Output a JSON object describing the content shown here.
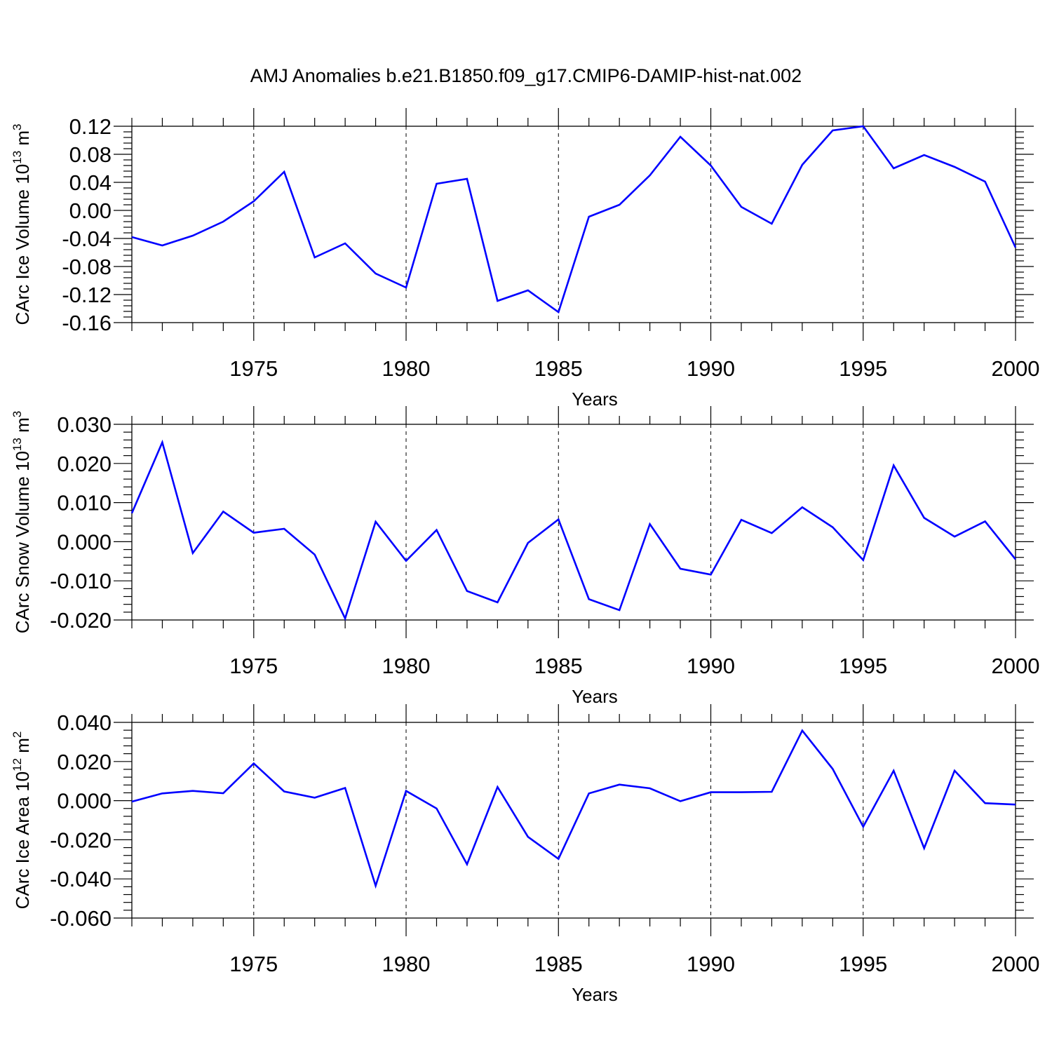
{
  "title": "AMJ Anomalies b.e21.B1850.f09_g17.CMIP6-DAMIP-hist-nat.002",
  "chart_data": [
    {
      "type": "line",
      "title": "AMJ Anomalies b.e21.B1850.f09_g17.CMIP6-DAMIP-hist-nat.002",
      "xlabel": "Years",
      "ylabel": {
        "text": "CArc Ice Volume 10",
        "exp": "13",
        "unit": " m",
        "unit_exp": "3"
      },
      "xlim": [
        1971,
        2000
      ],
      "ylim": [
        -0.16,
        0.12
      ],
      "xticks": [
        "1975",
        "1980",
        "1985",
        "1990",
        "1995",
        "2000"
      ],
      "yticks": [
        "0.12",
        "0.08",
        "0.04",
        "0.00",
        "-0.04",
        "-0.08",
        "-0.12",
        "-0.16"
      ],
      "grid": "dashed vertical at major x ticks",
      "line_color": "#0000ff",
      "series": [
        {
          "name": "CArc Ice Volume",
          "x": [
            1971,
            1972,
            1973,
            1974,
            1975,
            1976,
            1977,
            1978,
            1979,
            1980,
            1981,
            1982,
            1983,
            1984,
            1985,
            1986,
            1987,
            1988,
            1989,
            1990,
            1991,
            1992,
            1993,
            1994,
            1995,
            1996,
            1997,
            1998,
            1999,
            2000
          ],
          "values": [
            -0.038,
            -0.05,
            -0.036,
            -0.016,
            0.013,
            0.055,
            -0.067,
            -0.047,
            -0.09,
            -0.11,
            0.038,
            0.045,
            -0.129,
            -0.114,
            -0.145,
            -0.009,
            0.008,
            0.05,
            0.105,
            0.064,
            0.005,
            -0.019,
            0.065,
            0.114,
            0.12,
            0.06,
            0.079,
            0.062,
            0.041,
            -0.053
          ]
        }
      ]
    },
    {
      "type": "line",
      "xlabel": "Years",
      "ylabel": {
        "text": "CArc Snow Volume 10",
        "exp": "13",
        "unit": " m",
        "unit_exp": "3"
      },
      "xlim": [
        1971,
        2000
      ],
      "ylim": [
        -0.02,
        0.03
      ],
      "xticks": [
        "1975",
        "1980",
        "1985",
        "1990",
        "1995",
        "2000"
      ],
      "yticks": [
        "0.030",
        "0.020",
        "0.010",
        "0.000",
        "-0.010",
        "-0.020"
      ],
      "grid": "dashed vertical at major x ticks",
      "line_color": "#0000ff",
      "series": [
        {
          "name": "CArc Snow Volume",
          "x": [
            1971,
            1972,
            1973,
            1974,
            1975,
            1976,
            1977,
            1978,
            1979,
            1980,
            1981,
            1982,
            1983,
            1984,
            1985,
            1986,
            1987,
            1988,
            1989,
            1990,
            1991,
            1992,
            1993,
            1994,
            1995,
            1996,
            1997,
            1998,
            1999,
            2000
          ],
          "values": [
            0.0073,
            0.0254,
            -0.0029,
            0.0077,
            0.0023,
            0.0033,
            -0.0033,
            -0.0196,
            0.0051,
            -0.0049,
            0.003,
            -0.0126,
            -0.0155,
            -0.0003,
            0.0057,
            -0.0147,
            -0.0175,
            0.0045,
            -0.0069,
            -0.0084,
            0.0056,
            0.0022,
            0.0088,
            0.0037,
            -0.0047,
            0.0195,
            0.0061,
            0.0013,
            0.0052,
            -0.0045
          ]
        }
      ]
    },
    {
      "type": "line",
      "xlabel": "Years",
      "ylabel": {
        "text": "CArc Ice Area 10",
        "exp": "12",
        "unit": " m",
        "unit_exp": "2"
      },
      "xlim": [
        1971,
        2000
      ],
      "ylim": [
        -0.06,
        0.04
      ],
      "xticks": [
        "1975",
        "1980",
        "1985",
        "1990",
        "1995",
        "2000"
      ],
      "yticks": [
        "0.040",
        "0.020",
        "0.000",
        "-0.020",
        "-0.040",
        "-0.060"
      ],
      "grid": "dashed vertical at major x ticks",
      "line_color": "#0000ff",
      "series": [
        {
          "name": "CArc Ice Area",
          "x": [
            1971,
            1972,
            1973,
            1974,
            1975,
            1976,
            1977,
            1978,
            1979,
            1980,
            1981,
            1982,
            1983,
            1984,
            1985,
            1986,
            1987,
            1988,
            1989,
            1990,
            1991,
            1992,
            1993,
            1994,
            1995,
            1996,
            1997,
            1998,
            1999,
            2000
          ],
          "values": [
            -0.0005,
            0.0037,
            0.005,
            0.0038,
            0.019,
            0.0047,
            0.0015,
            0.0065,
            -0.0435,
            0.005,
            -0.004,
            -0.0325,
            0.007,
            -0.0185,
            -0.0298,
            0.0037,
            0.0082,
            0.0063,
            -0.0003,
            0.0043,
            0.0043,
            0.0045,
            0.0358,
            0.0162,
            -0.0133,
            0.0153,
            -0.0243,
            0.0153,
            -0.0013,
            -0.002
          ]
        }
      ]
    }
  ]
}
